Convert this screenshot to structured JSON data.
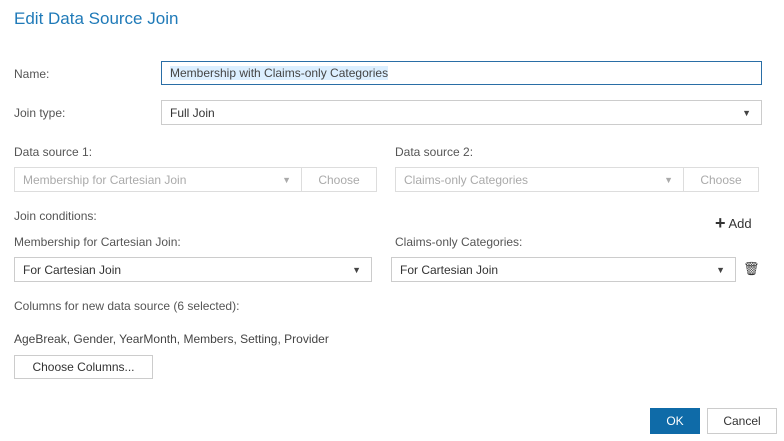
{
  "title": "Edit Data Source Join",
  "name": {
    "label": "Name:",
    "value": "Membership with Claims-only Categories"
  },
  "join_type": {
    "label": "Join type:",
    "value": "Full Join"
  },
  "ds1": {
    "label": "Data source 1:",
    "value": "Membership for Cartesian Join",
    "choose": "Choose"
  },
  "ds2": {
    "label": "Data source 2:",
    "value": "Claims-only Categories",
    "choose": "Choose"
  },
  "conditions": {
    "label": "Join conditions:",
    "add": "Add",
    "left_label": "Membership for Cartesian Join:",
    "left_value": "For Cartesian Join",
    "right_label": "Claims-only Categories:",
    "right_value": "For Cartesian Join"
  },
  "columns": {
    "label": "Columns for new data source (6 selected):",
    "list": "AgeBreak, Gender, YearMonth, Members, Setting, Provider",
    "choose": "Choose Columns..."
  },
  "footer": {
    "ok": "OK",
    "cancel": "Cancel"
  },
  "colors": {
    "accent": "#0f6ba8",
    "title": "#1f7ab8"
  }
}
